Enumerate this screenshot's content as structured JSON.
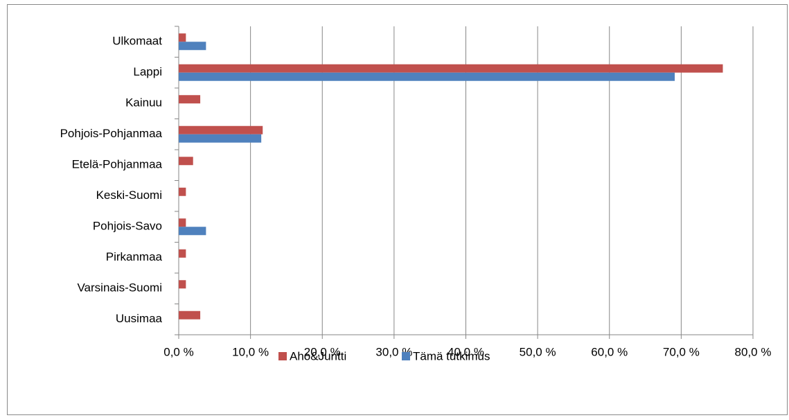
{
  "chart_data": {
    "type": "bar",
    "orientation": "horizontal",
    "categories": [
      "Ulkomaat",
      "Lappi",
      "Kainuu",
      "Pohjois-Pohjanmaa",
      "Etelä-Pohjanmaa",
      "Keski-Suomi",
      "Pohjois-Savo",
      "Pirkanmaa",
      "Varsinais-Suomi",
      "Uusimaa"
    ],
    "series": [
      {
        "name": "Aho&Juntti",
        "color": "#c0504d",
        "values": [
          1.0,
          75.8,
          3.0,
          11.7,
          2.0,
          1.0,
          1.0,
          1.0,
          1.0,
          3.0
        ]
      },
      {
        "name": "Tämä tutkimus",
        "color": "#4f81bd",
        "values": [
          3.8,
          69.1,
          0,
          11.5,
          0,
          0,
          3.8,
          0,
          0,
          0
        ]
      }
    ],
    "xlim": [
      0,
      80
    ],
    "xticks": [
      {
        "value": 0,
        "label": "0,0 %"
      },
      {
        "value": 10,
        "label": "10,0 %"
      },
      {
        "value": 20,
        "label": "20,0 %"
      },
      {
        "value": 30,
        "label": "30,0 %"
      },
      {
        "value": 40,
        "label": "40,0 %"
      },
      {
        "value": 50,
        "label": "50,0 %"
      },
      {
        "value": 60,
        "label": "60,0 %"
      },
      {
        "value": 70,
        "label": "70,0 %"
      },
      {
        "value": 80,
        "label": "80,0 %"
      }
    ],
    "grid": true,
    "legend": "bottom"
  }
}
